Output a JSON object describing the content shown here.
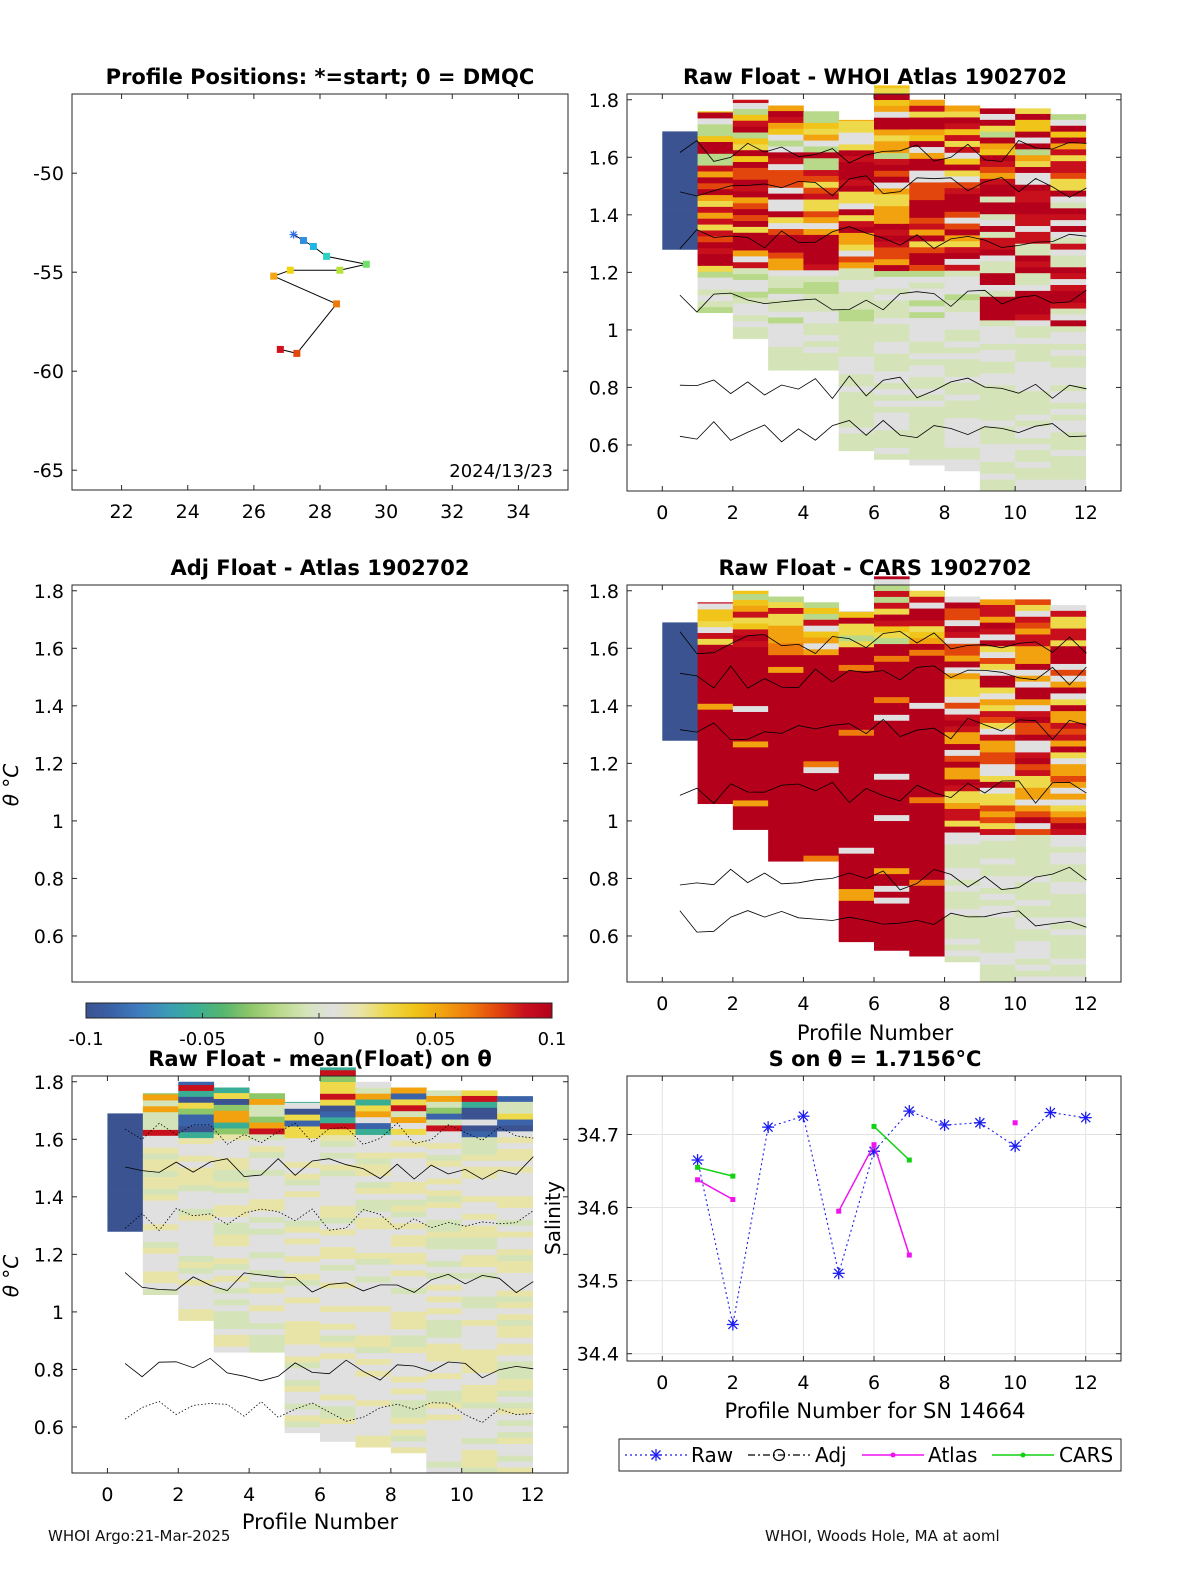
{
  "colors": {
    "colormap": [
      "#3b5391",
      "#3a63a9",
      "#3f7ec0",
      "#3b9cb5",
      "#3aae95",
      "#56b66e",
      "#8ec66a",
      "#b9d98a",
      "#d4e4b8",
      "#e0e0e0",
      "#e8e4a8",
      "#eed94a",
      "#f0c418",
      "#f2a20f",
      "#ef7a0c",
      "#e2460d",
      "#c8101d",
      "#b5001c"
    ],
    "contour": "#000000",
    "raw_series": "#1c1cf0",
    "atlas_series": "#f012f0",
    "cars_series": "#12d012",
    "grid": "#e3e3e3"
  },
  "footer": {
    "left": "WHOI Argo:21-Mar-2025",
    "right": "WHOI, Woods Hole, MA at aoml"
  },
  "chart_data": [
    {
      "id": "positions",
      "type": "scatter",
      "title": "Profile Positions: *=start; 0 = DMQC",
      "xlim": [
        20.5,
        35.5
      ],
      "ylim": [
        -66,
        -46
      ],
      "xticks": [
        "22",
        "24",
        "26",
        "28",
        "30",
        "32",
        "34"
      ],
      "yticks": [
        "-50",
        "-55",
        "-60",
        "-65"
      ],
      "annotation": "2024/13/23",
      "start_marker": "*",
      "points": [
        {
          "x": 27.2,
          "y": -53.1
        },
        {
          "x": 27.5,
          "y": -53.4
        },
        {
          "x": 27.8,
          "y": -53.7
        },
        {
          "x": 28.2,
          "y": -54.2
        },
        {
          "x": 29.4,
          "y": -54.6
        },
        {
          "x": 28.6,
          "y": -54.9
        },
        {
          "x": 27.1,
          "y": -54.9
        },
        {
          "x": 26.6,
          "y": -55.2
        },
        {
          "x": 28.5,
          "y": -56.6
        },
        {
          "x": 27.3,
          "y": -59.1
        },
        {
          "x": 26.8,
          "y": -58.9
        }
      ]
    },
    {
      "id": "whoi",
      "type": "heatmap",
      "title": "Raw Float - WHOI Atlas  1902702",
      "xlim": [
        -1,
        13
      ],
      "ylim": [
        0.44,
        1.82
      ],
      "xticks": [
        "0",
        "2",
        "4",
        "6",
        "8",
        "10",
        "12"
      ],
      "yticks": [
        "0.6",
        "0.8",
        "1",
        "1.2",
        "1.4",
        "1.6",
        "1.8"
      ],
      "xlabel": "",
      "ylabel": ""
    },
    {
      "id": "adj",
      "type": "heatmap",
      "title": "Adj Float - Atlas  1902702",
      "xlim": [
        -1,
        13
      ],
      "ylim": [
        0.44,
        1.82
      ],
      "xticks": [],
      "yticks": [
        "0.6",
        "0.8",
        "1",
        "1.2",
        "1.4",
        "1.6",
        "1.8"
      ],
      "xlabel": "",
      "ylabel": "θ °C"
    },
    {
      "id": "cars",
      "type": "heatmap",
      "title": "Raw Float - CARS  1902702",
      "xlim": [
        -1,
        13
      ],
      "ylim": [
        0.44,
        1.82
      ],
      "xticks": [
        "0",
        "2",
        "4",
        "6",
        "8",
        "10",
        "12"
      ],
      "yticks": [
        "0.6",
        "0.8",
        "1",
        "1.2",
        "1.4",
        "1.6",
        "1.8"
      ],
      "xlabel": "Profile Number",
      "ylabel": ""
    },
    {
      "id": "colorbar",
      "type": "heatmap",
      "range": [
        -0.1,
        0.1
      ],
      "ticks": [
        "-0.1",
        "-0.05",
        "0",
        "0.05",
        "0.1"
      ]
    },
    {
      "id": "mean",
      "type": "heatmap",
      "title": "Raw Float - mean(Float) on θ",
      "xlim": [
        -1,
        13
      ],
      "ylim": [
        0.44,
        1.82
      ],
      "xticks": [
        "0",
        "2",
        "4",
        "6",
        "8",
        "10",
        "12"
      ],
      "yticks": [
        "0.6",
        "0.8",
        "1",
        "1.2",
        "1.4",
        "1.6",
        "1.8"
      ],
      "xlabel": "Profile Number",
      "ylabel": "θ °C"
    },
    {
      "id": "salinity",
      "type": "line",
      "title": "S on θ = 1.7156°C",
      "xlabel": "Profile Number for SN 14664",
      "ylabel": "Salinity",
      "xlim": [
        -1,
        13
      ],
      "ylim": [
        34.39,
        34.78
      ],
      "grid": true,
      "xticks": [
        "0",
        "2",
        "4",
        "6",
        "8",
        "10",
        "12"
      ],
      "yticks": [
        "34.4",
        "34.5",
        "34.6",
        "34.7"
      ],
      "legend": [
        "Raw",
        "Adj",
        "Atlas",
        "CARS"
      ],
      "series": [
        {
          "name": "Raw",
          "x": [
            1,
            2,
            3,
            4,
            5,
            6,
            7,
            8,
            9,
            10,
            11,
            12
          ],
          "values": [
            34.665,
            34.44,
            34.71,
            34.725,
            34.51,
            34.677,
            34.732,
            34.713,
            34.716,
            34.684,
            34.73,
            34.723
          ]
        },
        {
          "name": "Atlas",
          "segments": [
            {
              "x": [
                1,
                2
              ],
              "values": [
                34.638,
                34.611
              ]
            },
            {
              "x": [
                5,
                6,
                7
              ],
              "values": [
                34.595,
                34.686,
                34.535
              ]
            },
            {
              "x": [
                10
              ],
              "values": [
                34.716
              ]
            }
          ]
        },
        {
          "name": "CARS",
          "segments": [
            {
              "x": [
                1,
                2
              ],
              "values": [
                34.655,
                34.643
              ]
            },
            {
              "x": [
                6,
                7
              ],
              "values": [
                34.711,
                34.665
              ]
            }
          ]
        }
      ]
    }
  ]
}
